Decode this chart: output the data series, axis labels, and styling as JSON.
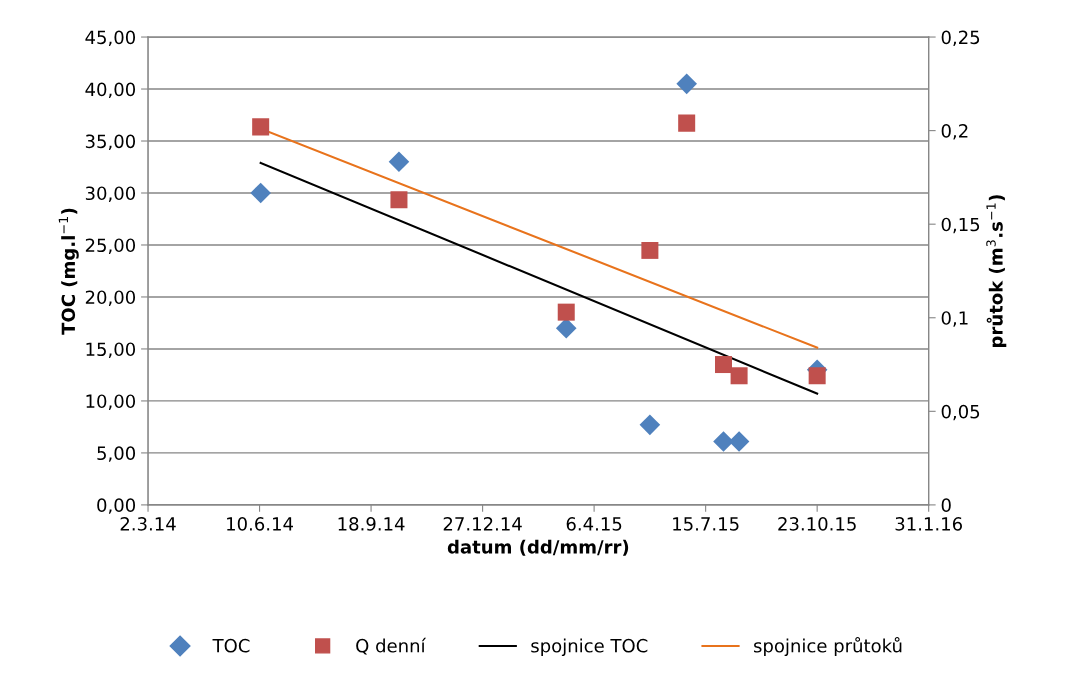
{
  "chart_data": {
    "type": "scatter",
    "xlabel": "datum (dd/mm/rr)",
    "ylabel": "TOC (mg.l$^{−1}$)",
    "y2label": "průtok (m$^{3}$.s$^{−1}$)",
    "xlim": [
      "2014-03-02",
      "2016-01-31"
    ],
    "xticks": [
      {
        "value": "2014-03-02",
        "label": "2.3.14"
      },
      {
        "value": "2014-06-10",
        "label": "10.6.14"
      },
      {
        "value": "2014-09-18",
        "label": "18.9.14"
      },
      {
        "value": "2014-12-27",
        "label": "27.12.14"
      },
      {
        "value": "2015-04-06",
        "label": "6.4.15"
      },
      {
        "value": "2015-07-15",
        "label": "15.7.15"
      },
      {
        "value": "2015-10-23",
        "label": "23.10.15"
      },
      {
        "value": "2016-01-31",
        "label": "31.1.16"
      }
    ],
    "ylim": [
      0,
      45
    ],
    "yticks": [
      {
        "value": 0,
        "label": "0,00"
      },
      {
        "value": 5,
        "label": "5,00"
      },
      {
        "value": 10,
        "label": "10,00"
      },
      {
        "value": 15,
        "label": "15,00"
      },
      {
        "value": 20,
        "label": "20,00"
      },
      {
        "value": 25,
        "label": "25,00"
      },
      {
        "value": 30,
        "label": "30,00"
      },
      {
        "value": 35,
        "label": "35,00"
      },
      {
        "value": 40,
        "label": "40,00"
      },
      {
        "value": 45,
        "label": "45,00"
      }
    ],
    "y2lim": [
      0,
      0.25
    ],
    "y2ticks": [
      {
        "value": 0,
        "label": "0"
      },
      {
        "value": 0.05,
        "label": "0,05"
      },
      {
        "value": 0.1,
        "label": "0,1"
      },
      {
        "value": 0.15,
        "label": "0,15"
      },
      {
        "value": 0.2,
        "label": "0,2"
      },
      {
        "value": 0.25,
        "label": "0,25"
      }
    ],
    "grid": "y",
    "legend": "bottom",
    "series": [
      {
        "name": "TOC",
        "marker": "diamond",
        "color": "#4f81bd",
        "x": [
          "2014-06-11",
          "2014-10-13",
          "2015-03-12",
          "2015-05-26",
          "2015-06-28",
          "2015-07-31",
          "2015-08-14",
          "2015-10-23"
        ],
        "values": [
          30,
          33,
          17,
          7.7,
          40.5,
          6.1,
          6.1,
          13
        ]
      },
      {
        "name": "Q denní",
        "marker": "square",
        "axis": "y2",
        "color": "#c0504d",
        "x": [
          "2014-06-11",
          "2014-10-13",
          "2015-03-12",
          "2015-05-26",
          "2015-06-28",
          "2015-07-31",
          "2015-08-14",
          "2015-10-23"
        ],
        "values": [
          0.202,
          0.163,
          0.103,
          0.136,
          0.204,
          0.075,
          0.069,
          0.069
        ]
      },
      {
        "name": "spojnice TOC",
        "type": "line",
        "marker": "none",
        "color": "#000000",
        "x": [
          "2014-06-11",
          "2015-10-23"
        ],
        "values": [
          32.9,
          10.7
        ]
      },
      {
        "name": "spojnice průtoků",
        "type": "line",
        "marker": "none",
        "axis": "y2",
        "color": "#e8731c",
        "x": [
          "2014-06-11",
          "2015-10-23"
        ],
        "values": [
          0.201,
          0.084
        ]
      }
    ]
  }
}
